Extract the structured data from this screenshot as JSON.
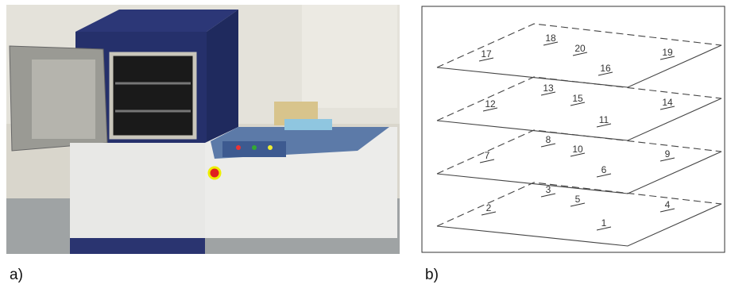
{
  "panels": [
    {
      "label": "a)"
    },
    {
      "label": "b)",
      "points": [
        "1",
        "2",
        "3",
        "4",
        "5",
        "6",
        "7",
        "8",
        "9",
        "10",
        "11",
        "12",
        "13",
        "14",
        "15",
        "16",
        "17",
        "18",
        "19",
        "20"
      ]
    }
  ]
}
